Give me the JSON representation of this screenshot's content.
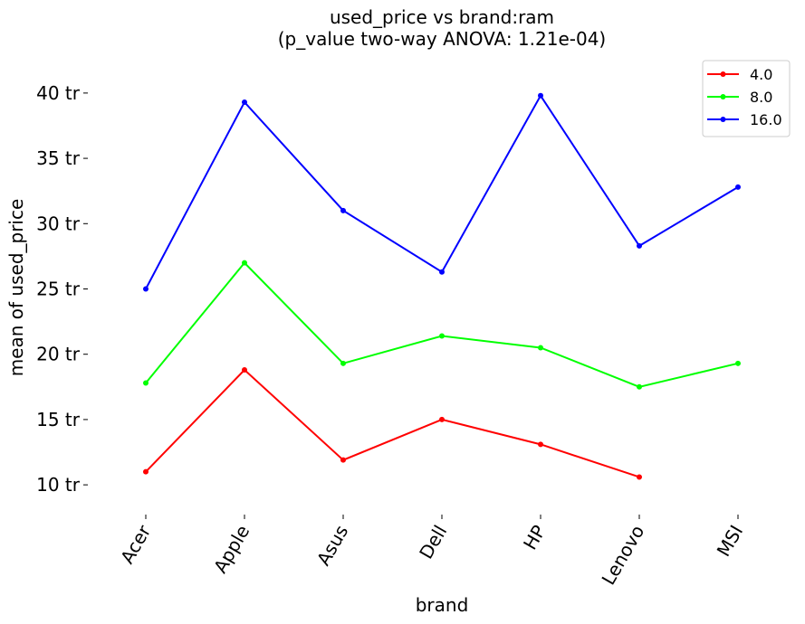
{
  "chart_data": {
    "type": "line",
    "title": "used_price vs brand:ram",
    "subtitle": "(p_value two-way ANOVA: 1.21e-04)",
    "xlabel": "brand",
    "ylabel": "mean of used_price",
    "categories": [
      "Acer",
      "Apple",
      "Asus",
      "Dell",
      "HP",
      "Lenovo",
      "MSI"
    ],
    "ylim": [
      8,
      42
    ],
    "yticks": [
      10,
      15,
      20,
      25,
      30,
      35,
      40
    ],
    "ytick_labels": [
      "10 tr",
      "15 tr",
      "20 tr",
      "25 tr",
      "30 tr",
      "35 tr",
      "40 tr"
    ],
    "grid": false,
    "legend_position": "top-right",
    "series": [
      {
        "name": "4.0",
        "color": "#ff0000",
        "values": [
          11.0,
          18.8,
          11.9,
          15.0,
          13.1,
          10.6,
          null
        ]
      },
      {
        "name": "8.0",
        "color": "#00ff00",
        "values": [
          17.8,
          27.0,
          19.3,
          21.4,
          20.5,
          17.5,
          19.3
        ]
      },
      {
        "name": "16.0",
        "color": "#0000ff",
        "values": [
          25.0,
          39.3,
          31.0,
          26.3,
          39.8,
          28.3,
          32.8
        ]
      }
    ]
  }
}
